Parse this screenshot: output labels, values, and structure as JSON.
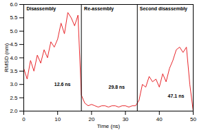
{
  "chart_data": {
    "type": "line",
    "x_label": "Time (ns)",
    "y_label": "RMSD (nm)",
    "x": [
      0,
      1,
      2,
      3,
      4,
      5,
      6,
      7,
      8,
      9,
      10,
      11,
      12,
      13,
      14,
      15,
      16,
      17,
      18,
      19,
      20,
      21,
      22,
      23,
      24,
      25,
      26,
      27,
      28,
      29,
      30,
      31,
      32,
      33,
      34,
      35,
      36,
      37,
      38,
      39,
      40,
      41,
      42,
      43,
      44,
      45,
      46,
      47,
      48,
      49,
      50
    ],
    "series": [
      {
        "name": "RMSD",
        "color": "#e8262b",
        "values": [
          3.6,
          3.2,
          3.9,
          3.5,
          4.1,
          3.8,
          4.3,
          4.0,
          4.6,
          4.4,
          4.7,
          5.3,
          4.9,
          5.7,
          5.5,
          5.2,
          5.6,
          2.6,
          2.3,
          2.2,
          2.25,
          2.2,
          2.15,
          2.2,
          2.2,
          2.15,
          2.2,
          2.2,
          2.15,
          2.2,
          2.2,
          2.15,
          2.2,
          2.2,
          2.4,
          3.0,
          2.9,
          3.3,
          3.1,
          3.2,
          2.9,
          3.4,
          3.1,
          3.6,
          3.9,
          4.3,
          4.4,
          4.2,
          4.4,
          3.0,
          2.0
        ]
      }
    ],
    "xlim": [
      0,
      50
    ],
    "xticks": [
      0,
      10,
      20,
      30,
      40,
      50
    ],
    "ylim": [
      2,
      6
    ],
    "yticks": [
      {
        "value": 2,
        "label": "2.0"
      },
      2.5,
      {
        "value": 3,
        "label": "3.0"
      },
      3.5,
      {
        "value": 4,
        "label": "4.0"
      },
      4.5,
      {
        "value": 5,
        "label": "5.0"
      },
      5.5,
      {
        "value": 6,
        "label": "6.0"
      }
    ],
    "vlines": [
      17,
      33.5
    ],
    "annotations": [
      {
        "text": "Disassembly",
        "x": 0.8,
        "y": 5.85
      },
      {
        "text": "Re-assembly",
        "x": 17.8,
        "y": 5.85
      },
      {
        "text": "Second disassembly",
        "x": 34.2,
        "y": 5.85
      },
      {
        "text": "12.6 ns",
        "x": 9,
        "y": 3.0
      },
      {
        "text": "29.8 ns",
        "x": 25,
        "y": 2.9
      },
      {
        "text": "47.1 ns",
        "x": 42.5,
        "y": 2.55
      }
    ],
    "grid": false
  }
}
